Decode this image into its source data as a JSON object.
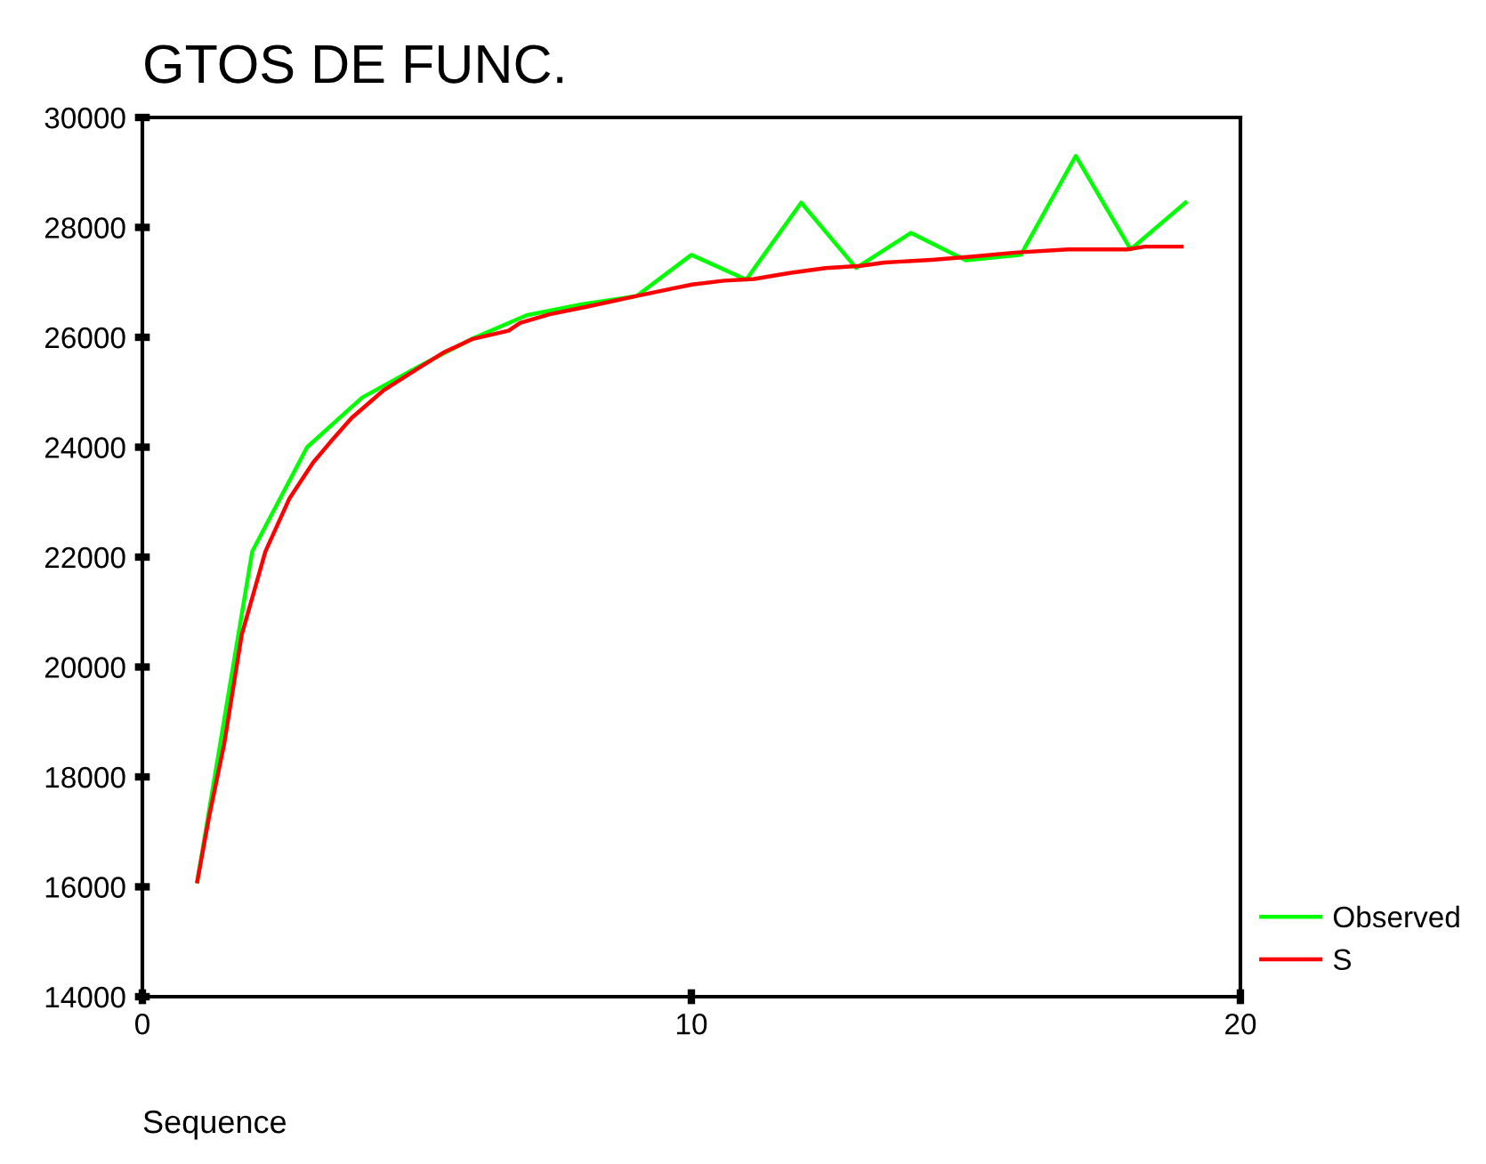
{
  "chart_data": {
    "type": "line",
    "title": "GTOS DE FUNC.",
    "xlabel": "Sequence",
    "xlim": [
      0,
      20
    ],
    "xticks": [
      0,
      10,
      20
    ],
    "ylim": [
      14000,
      30000
    ],
    "yticks": [
      14000,
      16000,
      18000,
      20000,
      22000,
      24000,
      26000,
      28000,
      30000
    ],
    "grid": false,
    "legend": "bottom right",
    "series": [
      {
        "name": "Observed",
        "color": "#00ff00",
        "x": [
          1,
          2,
          3,
          4,
          5,
          6,
          7,
          8,
          9,
          10,
          11,
          12,
          13,
          14,
          15,
          16,
          17,
          18,
          19
        ],
        "values": [
          16100,
          22100,
          24000,
          24900,
          25450,
          25970,
          26400,
          26600,
          26750,
          27500,
          27050,
          28450,
          27260,
          27900,
          27400,
          27500,
          29300,
          27600,
          28450
        ]
      },
      {
        "name": "S",
        "color": "#ff0000",
        "x": [
          1.0,
          1.22,
          1.49,
          1.81,
          2.24,
          2.68,
          3.11,
          3.43,
          3.81,
          4.4,
          5.05,
          5.48,
          6.02,
          6.67,
          6.88,
          7.42,
          8.07,
          9.04,
          10.01,
          10.6,
          11.14,
          11.79,
          12.44,
          13.08,
          13.52,
          14.38,
          15.13,
          15.89,
          16.86,
          17.94,
          18.26,
          18.93
        ],
        "values": [
          16100,
          17300,
          18600,
          20590,
          22100,
          23070,
          23720,
          24100,
          24530,
          25040,
          25450,
          25720,
          25970,
          26120,
          26260,
          26420,
          26550,
          26760,
          26960,
          27030,
          27060,
          27170,
          27260,
          27300,
          27360,
          27410,
          27470,
          27540,
          27600,
          27600,
          27650,
          27650
        ]
      }
    ]
  }
}
